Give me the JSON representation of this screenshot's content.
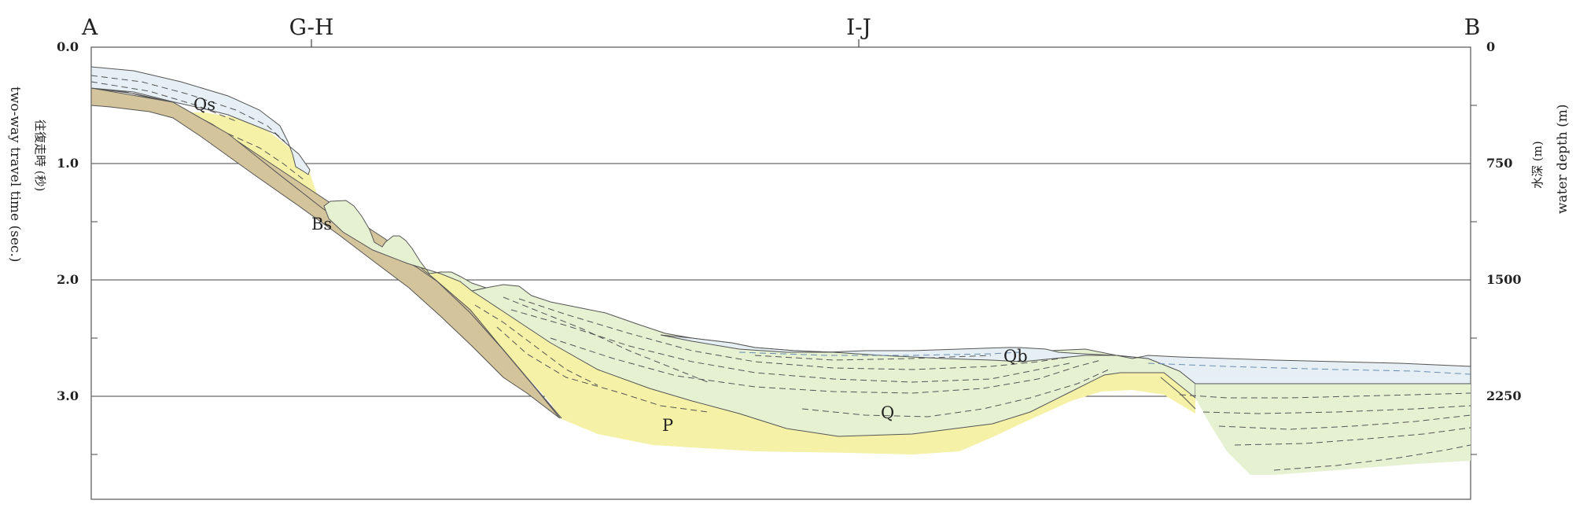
{
  "section_points": [
    "A",
    "G-H",
    "I-J",
    "B"
  ],
  "left_axis": {
    "label_jp": "往復走時 (秒)",
    "label_en": "two-way travel time (sec.)",
    "ticks": [
      "0.0",
      "1.0",
      "2.0",
      "3.0"
    ]
  },
  "right_axis": {
    "label_jp": "水深 (m)",
    "label_en": "water depth (m)",
    "ticks": [
      "0",
      "750",
      "1500",
      "2250"
    ]
  },
  "units": [
    {
      "label": "Qs",
      "name": "unit-qs",
      "color": "#e6f0f4"
    },
    {
      "label": "Bs",
      "name": "unit-bs",
      "color": "#d4c49c"
    },
    {
      "label": "Qb",
      "name": "unit-qb",
      "color": "#e6f0f4"
    },
    {
      "label": "Q",
      "name": "unit-q",
      "color": "#e6f1d2"
    },
    {
      "label": "P",
      "name": "unit-p",
      "color": "#f5f1a6"
    }
  ]
}
